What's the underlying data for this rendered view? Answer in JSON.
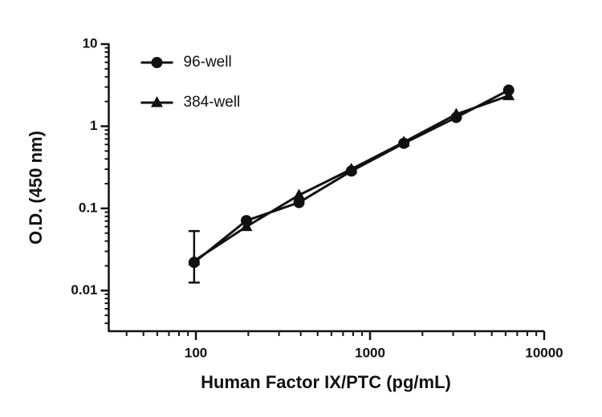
{
  "chart_data": {
    "type": "line",
    "x_label": "Human Factor IX/PTC (pg/mL)",
    "y_label": "O.D. (450 nm)",
    "x_log": true,
    "y_log": true,
    "xlim": [
      31.6,
      10000
    ],
    "ylim": [
      0.0032,
      10
    ],
    "xticks": [
      100,
      1000,
      10000
    ],
    "yticks": [
      0.01,
      0.1,
      1,
      10
    ],
    "x": [
      97.7,
      195,
      391,
      781,
      1563,
      3125,
      6250
    ],
    "series": [
      {
        "name": "96-well",
        "color": "#111111",
        "marker": "circle",
        "values": [
          0.022,
          0.071,
          0.118,
          0.285,
          0.62,
          1.28,
          2.75
        ],
        "error_lower": [
          0.0125,
          null,
          null,
          null,
          null,
          null,
          null
        ],
        "error_upper": [
          0.053,
          null,
          null,
          null,
          null,
          null,
          null
        ]
      },
      {
        "name": "384-well",
        "color": "#111111",
        "marker": "triangle",
        "values": [
          0.023,
          0.06,
          0.145,
          0.3,
          0.64,
          1.4,
          2.35
        ]
      }
    ],
    "legend": "upper left"
  }
}
